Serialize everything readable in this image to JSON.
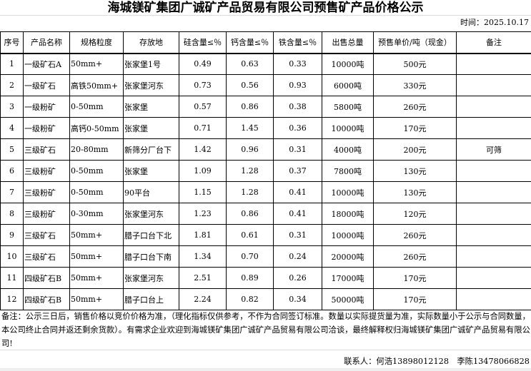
{
  "title": "海城镁矿集团广诚矿产品贸易有限公司预售矿产品价格公示",
  "time": "时间：2025.10.17",
  "headers": [
    "序号",
    "产品名称",
    "规格粒度",
    "存放地",
    "硅含量≤％",
    "钙含量≤％",
    "铁含量≤％",
    "出售总量",
    "预售单价/吨（现金）",
    "备注"
  ],
  "rows": [
    [
      "1",
      "一级矿石A",
      "50mm+",
      "张家堡1号",
      "0.49",
      "0.63",
      "0.33",
      "10000吨",
      "500元",
      ""
    ],
    [
      "2",
      "一级矿石",
      "高铁50mm+",
      "张家堡河东",
      "0.73",
      "0.56",
      "0.93",
      "6000吨",
      "330元",
      ""
    ],
    [
      "3",
      "一级粉矿",
      "0-50mm",
      "张家堡",
      "0.57",
      "0.86",
      "0.38",
      "5800吨",
      "260元",
      ""
    ],
    [
      "4",
      "一级粉矿",
      "高钙0-50mm",
      "张家堡",
      "0.71",
      "1.45",
      "0.36",
      "10000吨",
      "170元",
      ""
    ],
    [
      "5",
      "三级矿石",
      "20-80mm",
      "新筛分厂台下",
      "1.42",
      "0.96",
      "0.31",
      "4000吨",
      "200元",
      "可筛"
    ],
    [
      "6",
      "三级粉矿",
      "0-50mm",
      "张家堡",
      "1.09",
      "1.28",
      "0.37",
      "7800吨",
      "130元",
      ""
    ],
    [
      "7",
      "三级粉矿",
      "0-50mm",
      "90平台",
      "1.15",
      "1.28",
      "0.41",
      "10000吨",
      "130元",
      ""
    ],
    [
      "8",
      "三级粉矿",
      "0-30mm",
      "张家堡河东",
      "1.23",
      "0.86",
      "0.41",
      "18000吨",
      "120元",
      ""
    ],
    [
      "9",
      "三级矿石",
      "50mm+",
      "腊子口台下北",
      "1.81",
      "0.61",
      "0.31",
      "10000吨",
      "260元",
      ""
    ],
    [
      "10",
      "三级矿石",
      "50mm+",
      "腊子口台下南",
      "1.34",
      "0.70",
      "0.24",
      "20000吨",
      "260元",
      ""
    ],
    [
      "11",
      "四级矿石B",
      "50mm+",
      "张家堡河东",
      "2.51",
      "0.89",
      "0.26",
      "17000吨",
      "170元",
      ""
    ],
    [
      "12",
      "四级矿石B",
      "50mm+",
      "腊子口台上",
      "2.24",
      "0.82",
      "0.34",
      "50000吨",
      "170元",
      ""
    ]
  ],
  "note": "备注：公示三日后，销售价格以竞价价格为准，（理化指标仅供参考，不作为合同签订标准。数量以实际提货量为准，实际数量小于公示与合同数量，本公司终止合同并返还剩余货款）。有需求企业欢迎到海城镁矿集团广诚矿产品贸易有限公司洽谈，最终解释权归海城镁矿集团广诚矿产品贸易有限公司!",
  "contact": "联系人：何浩13898012128　李陈13478066828"
}
